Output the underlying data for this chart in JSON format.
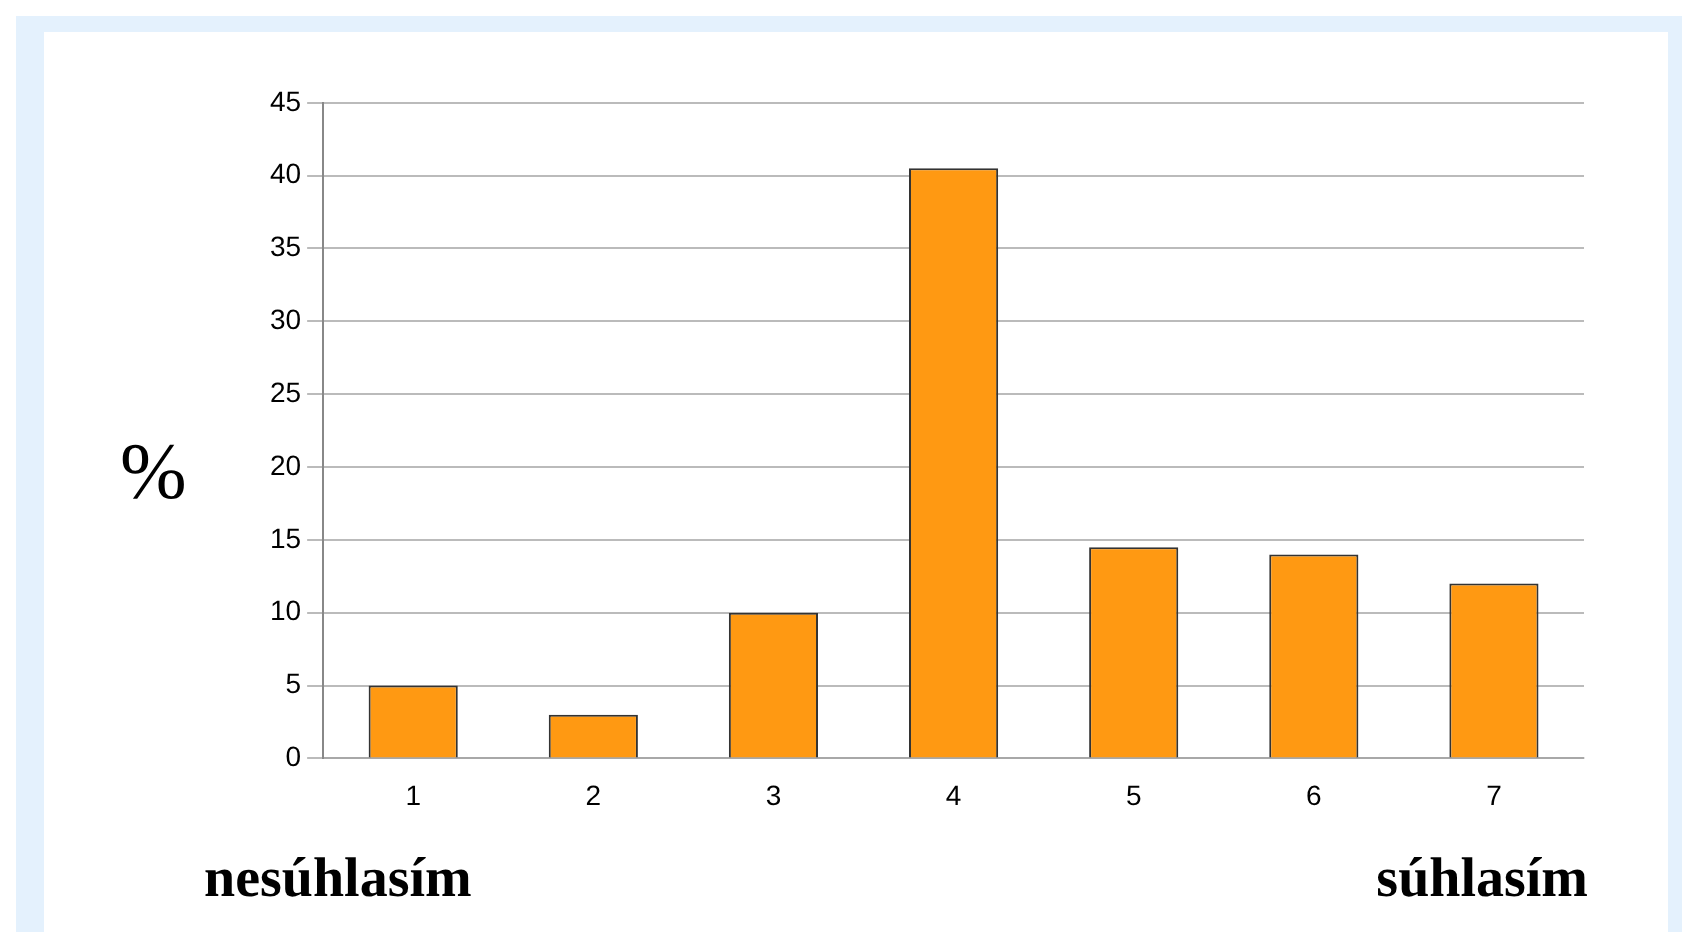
{
  "chart_data": {
    "type": "bar",
    "categories": [
      "1",
      "2",
      "3",
      "4",
      "5",
      "6",
      "7"
    ],
    "values": [
      5,
      3,
      10,
      40.5,
      14.5,
      14,
      12
    ],
    "color": "#ff9912",
    "ylabel": "%",
    "ylim": [
      0,
      45
    ],
    "yticks": [
      0,
      5,
      10,
      15,
      20,
      25,
      30,
      35,
      40,
      45
    ],
    "grid": "y",
    "legend": false,
    "annotations": [
      "nesúhlasím",
      "súhlasím"
    ]
  }
}
